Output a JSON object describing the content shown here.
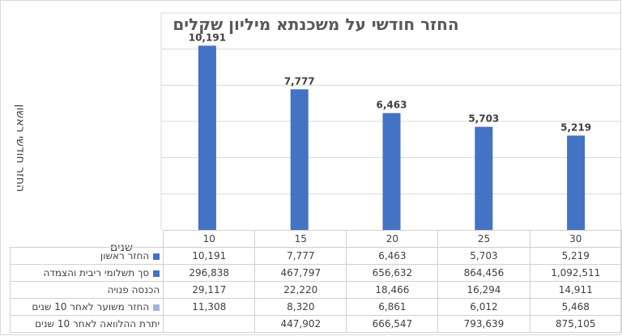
{
  "chart_data": {
    "type": "bar",
    "title": "החזר חודשי על משכנתא מיליון שקלים",
    "xlabel": "שנים",
    "ylabel": "החזר חודשי ראשון",
    "categories": [
      "10",
      "15",
      "20",
      "25",
      "30"
    ],
    "series": [
      {
        "name": "החזר ראשון",
        "values": [
          10191,
          7777,
          6463,
          5703,
          5219
        ],
        "labels": [
          "10,191",
          "7,777",
          "6,463",
          "5,703",
          "5,219"
        ],
        "color": "#4472c4"
      }
    ],
    "ylim": [
      0,
      12000
    ],
    "grid": true
  },
  "table": {
    "rows": [
      {
        "label": "החזר ראשון",
        "marker": "#4472c4",
        "values": [
          "10,191",
          "7,777",
          "6,463",
          "5,703",
          "5,219"
        ]
      },
      {
        "label": "סך תשלומי ריבית והצמדה",
        "marker": "#4472c4",
        "values": [
          "296,838",
          "467,797",
          "656,632",
          "864,456",
          "1,092,511"
        ]
      },
      {
        "label": "הכנסה פנויה",
        "marker": "",
        "values": [
          "29,117",
          "22,220",
          "18,466",
          "16,294",
          "14,911"
        ]
      },
      {
        "label": "החזר משוער לאחר 10 שנים",
        "marker": "#a5b4d6",
        "values": [
          "11,308",
          "8,320",
          "6,861",
          "6,012",
          "5,468"
        ]
      },
      {
        "label": "יתרת ההלוואה לאחר 10 שנים",
        "marker": "",
        "values": [
          "",
          "447,902",
          "666,547",
          "793,639",
          "875,105"
        ]
      }
    ]
  }
}
